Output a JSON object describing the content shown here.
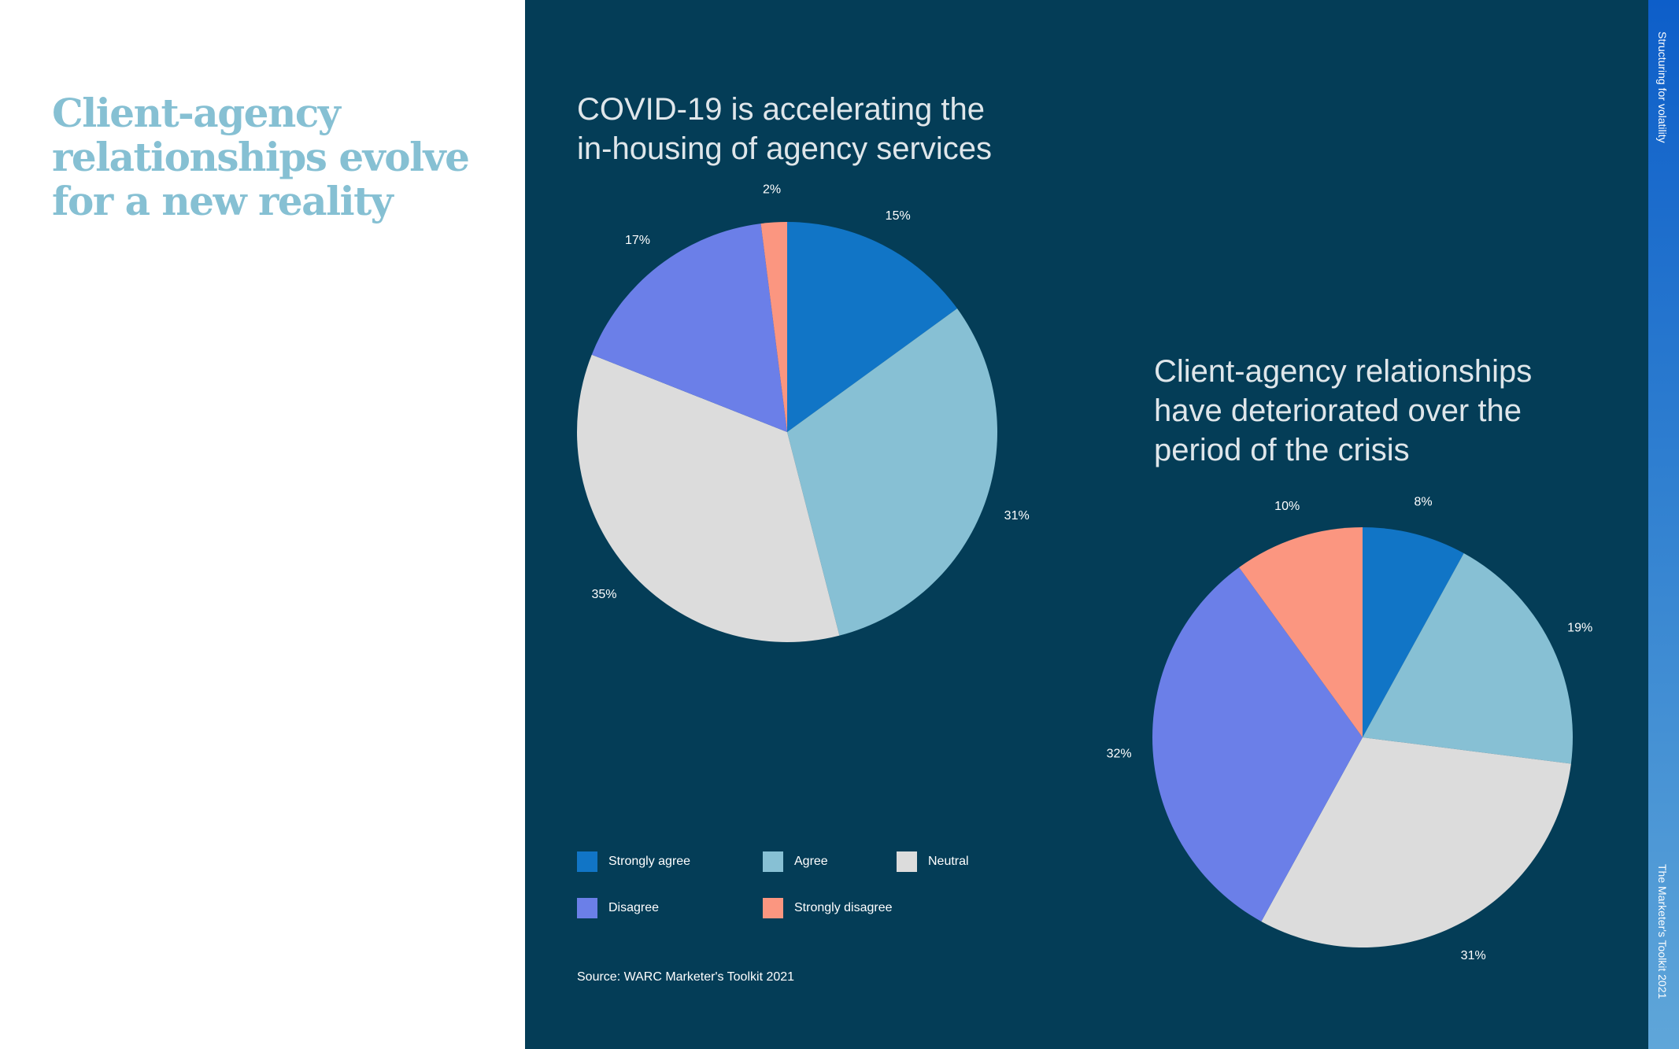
{
  "headline": "Client-agency relationships evolve for a new reality",
  "side_labels": {
    "top": "Structuring for volatility",
    "bottom": "The Marketer's Toolkit 2021"
  },
  "colors": {
    "strongly_agree": "#1175c6",
    "agree": "#87c0d4",
    "neutral": "#dcdcdc",
    "disagree": "#6b7fe8",
    "strongly_disagree": "#fb9680"
  },
  "legend": [
    {
      "label": "Strongly agree",
      "color": "#1175c6"
    },
    {
      "label": "Agree",
      "color": "#87c0d4"
    },
    {
      "label": "Neutral",
      "color": "#dcdcdc"
    },
    {
      "label": "Disagree",
      "color": "#6b7fe8"
    },
    {
      "label": "Strongly disagree",
      "color": "#fb9680"
    }
  ],
  "source": "Source: WARC Marketer's Toolkit 2021",
  "chart_data": [
    {
      "type": "pie",
      "title": "COVID-19 is accelerating the in-housing of agency services",
      "title_lines": [
        "COVID-19 is accelerating the",
        "in-housing of agency services"
      ],
      "categories": [
        "Strongly agree",
        "Agree",
        "Neutral",
        "Disagree",
        "Strongly disagree"
      ],
      "values": [
        15,
        31,
        35,
        17,
        2
      ],
      "labels": [
        "15%",
        "31%",
        "35%",
        "17%",
        "2%"
      ]
    },
    {
      "type": "pie",
      "title": "Client-agency relationships have deteriorated over the period of the crisis",
      "title_lines": [
        "Client-agency relationships",
        "have deteriorated over the",
        "period of the crisis"
      ],
      "categories": [
        "Strongly agree",
        "Agree",
        "Neutral",
        "Disagree",
        "Strongly disagree"
      ],
      "values": [
        8,
        19,
        31,
        32,
        10
      ],
      "labels": [
        "8%",
        "19%",
        "31%",
        "32%",
        "10%"
      ]
    }
  ]
}
